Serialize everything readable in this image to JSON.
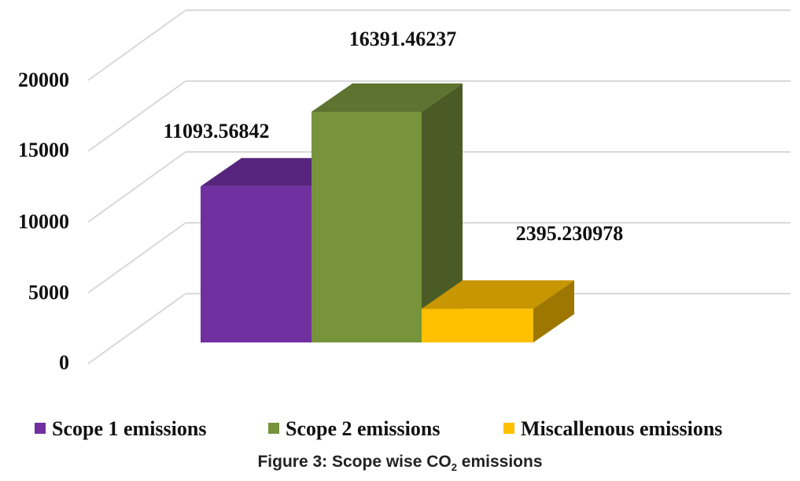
{
  "chart_data": {
    "type": "bar",
    "categories": [
      "Scope 1 emissions",
      "Scope 2 emissions",
      "Miscallenous emissions"
    ],
    "values": [
      11093.56842,
      16391.46237,
      2395.230978
    ],
    "value_labels": [
      "11093.56842",
      "16391.46237",
      "2395.230978"
    ],
    "yticks": [
      "0",
      "5000",
      "10000",
      "15000",
      "20000"
    ],
    "ylim": [
      0,
      20000
    ],
    "legend_position": "bottom",
    "grid": true,
    "style": "3d-column",
    "colors": {
      "series": [
        "#7030a0",
        "#77933c",
        "#ffc000"
      ]
    }
  },
  "caption": {
    "prefix": "Figure 3: Scope wise CO",
    "subscript": "2",
    "suffix": " emissions"
  }
}
